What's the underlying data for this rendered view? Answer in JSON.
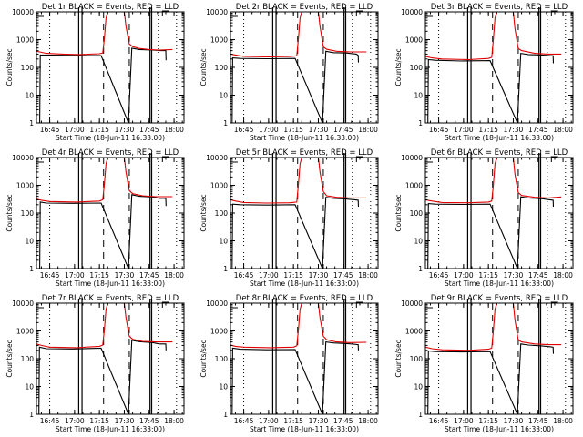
{
  "chart_data": {
    "type": "line",
    "layout": "3x3 grid of panels",
    "shared": {
      "ylabel": "Counts/sec",
      "xlabel": "Start Time (18-Jun-11 16:33:00)",
      "yscale": "log",
      "ylim": [
        1,
        10000
      ],
      "yticks": [
        1,
        10,
        100,
        1000,
        10000
      ],
      "ytick_labels": [
        "1",
        "10",
        "100",
        "1000",
        "10000"
      ],
      "xlim_minutes_after_start": [
        4,
        93
      ],
      "xticks_minutes_after_start": [
        12,
        27,
        42,
        57,
        72,
        87
      ],
      "xtick_labels": [
        "16:45",
        "17:00",
        "17:15",
        "17:30",
        "17:45",
        "18:00"
      ],
      "series_legend": [
        {
          "name": "Events",
          "color": "#000000"
        },
        {
          "name": "LLD",
          "color": "#e00000"
        }
      ],
      "markers": {
        "solid_vertical_minutes": [
          29.5,
          31.5,
          72.5,
          73.5
        ],
        "dashed_vertical_minutes": [
          44.5,
          60
        ],
        "dotted_vertical_minutes": [
          12,
          77.5,
          88.5
        ]
      }
    },
    "panels": [
      {
        "title": "Det 1r BLACK = Events, RED = LLD",
        "events": [
          [
            6,
            0
          ],
          [
            6.3,
            280
          ],
          [
            26,
            270
          ],
          [
            29,
            265
          ],
          [
            43,
            265
          ],
          [
            59.5,
            0
          ],
          [
            61.5,
            490
          ],
          [
            66,
            440
          ],
          [
            74,
            420
          ],
          [
            79,
            400
          ],
          [
            82,
            400
          ],
          [
            82.2,
            180
          ]
        ],
        "lld": [
          [
            4,
            380
          ],
          [
            6,
            360
          ],
          [
            10,
            320
          ],
          [
            20,
            300
          ],
          [
            30,
            290
          ],
          [
            42,
            310
          ],
          [
            44,
            330
          ],
          [
            45,
            1100
          ],
          [
            46,
            6000
          ],
          [
            47,
            10000
          ],
          [
            57,
            10000
          ],
          [
            58,
            3000
          ],
          [
            60,
            700
          ],
          [
            62,
            560
          ],
          [
            66,
            480
          ],
          [
            72,
            440
          ],
          [
            78,
            420
          ],
          [
            86,
            440
          ]
        ]
      },
      {
        "title": "Det 2r BLACK = Events, RED = LLD",
        "events": [
          [
            5,
            0
          ],
          [
            5.3,
            220
          ],
          [
            10,
            210
          ],
          [
            26,
            205
          ],
          [
            43,
            210
          ],
          [
            59.5,
            0
          ],
          [
            61.5,
            380
          ],
          [
            66,
            340
          ],
          [
            74,
            330
          ],
          [
            80,
            300
          ],
          [
            81,
            270
          ],
          [
            81.2,
            150
          ]
        ],
        "lld": [
          [
            4,
            300
          ],
          [
            7,
            280
          ],
          [
            12,
            250
          ],
          [
            26,
            240
          ],
          [
            40,
            245
          ],
          [
            44,
            260
          ],
          [
            45,
            1100
          ],
          [
            46,
            6000
          ],
          [
            47,
            10000
          ],
          [
            57,
            10000
          ],
          [
            58,
            3000
          ],
          [
            60,
            550
          ],
          [
            62,
            450
          ],
          [
            68,
            380
          ],
          [
            76,
            360
          ],
          [
            86,
            360
          ]
        ]
      },
      {
        "title": "Det 3r BLACK = Events, RED = LLD",
        "events": [
          [
            5.5,
            0
          ],
          [
            5.8,
            190
          ],
          [
            10,
            180
          ],
          [
            26,
            170
          ],
          [
            43,
            175
          ],
          [
            59.5,
            0
          ],
          [
            61.5,
            320
          ],
          [
            66,
            290
          ],
          [
            74,
            280
          ],
          [
            79,
            265
          ],
          [
            81,
            260
          ],
          [
            81.2,
            140
          ]
        ],
        "lld": [
          [
            4,
            250
          ],
          [
            8,
            220
          ],
          [
            14,
            200
          ],
          [
            30,
            190
          ],
          [
            42,
            210
          ],
          [
            44,
            230
          ],
          [
            45,
            1000
          ],
          [
            46,
            6000
          ],
          [
            47,
            10000
          ],
          [
            57,
            10000
          ],
          [
            58,
            2500
          ],
          [
            60,
            480
          ],
          [
            62,
            400
          ],
          [
            70,
            320
          ],
          [
            78,
            300
          ],
          [
            86,
            300
          ]
        ]
      },
      {
        "title": "Det 4r BLACK = Events, RED = LLD",
        "events": [
          [
            6,
            0
          ],
          [
            6.3,
            250
          ],
          [
            10,
            230
          ],
          [
            26,
            225
          ],
          [
            43,
            230
          ],
          [
            59.5,
            0
          ],
          [
            61.5,
            460
          ],
          [
            66,
            400
          ],
          [
            74,
            380
          ],
          [
            78,
            340
          ],
          [
            82,
            340
          ],
          [
            82.2,
            180
          ]
        ],
        "lld": [
          [
            4,
            320
          ],
          [
            7,
            290
          ],
          [
            12,
            260
          ],
          [
            28,
            250
          ],
          [
            42,
            270
          ],
          [
            44,
            300
          ],
          [
            45,
            1100
          ],
          [
            46,
            6000
          ],
          [
            47,
            10000
          ],
          [
            57,
            10000
          ],
          [
            58,
            3000
          ],
          [
            60,
            650
          ],
          [
            62,
            500
          ],
          [
            68,
            420
          ],
          [
            76,
            390
          ],
          [
            86,
            390
          ]
        ]
      },
      {
        "title": "Det 5r BLACK = Events, RED = LLD",
        "events": [
          [
            5,
            0
          ],
          [
            5.3,
            210
          ],
          [
            10,
            200
          ],
          [
            26,
            195
          ],
          [
            43,
            200
          ],
          [
            59.5,
            0
          ],
          [
            61.5,
            370
          ],
          [
            66,
            340
          ],
          [
            74,
            320
          ],
          [
            79,
            300
          ],
          [
            81,
            290
          ],
          [
            81.2,
            170
          ]
        ],
        "lld": [
          [
            4,
            300
          ],
          [
            7,
            270
          ],
          [
            12,
            240
          ],
          [
            26,
            230
          ],
          [
            40,
            235
          ],
          [
            44,
            250
          ],
          [
            45,
            1100
          ],
          [
            46,
            6000
          ],
          [
            47,
            10000
          ],
          [
            57,
            10000
          ],
          [
            58,
            3000
          ],
          [
            60,
            600
          ],
          [
            62,
            420
          ],
          [
            68,
            370
          ],
          [
            76,
            350
          ],
          [
            86,
            350
          ]
        ]
      },
      {
        "title": "Det 6r BLACK = Events, RED = LLD",
        "events": [
          [
            5.5,
            0
          ],
          [
            5.8,
            220
          ],
          [
            10,
            210
          ],
          [
            26,
            205
          ],
          [
            43,
            210
          ],
          [
            59.5,
            0
          ],
          [
            61.5,
            380
          ],
          [
            66,
            350
          ],
          [
            74,
            330
          ],
          [
            79,
            300
          ],
          [
            81,
            290
          ],
          [
            81.2,
            170
          ]
        ],
        "lld": [
          [
            4,
            300
          ],
          [
            8,
            270
          ],
          [
            14,
            240
          ],
          [
            30,
            235
          ],
          [
            42,
            250
          ],
          [
            44,
            270
          ],
          [
            45,
            1000
          ],
          [
            46,
            6000
          ],
          [
            47,
            10000
          ],
          [
            57,
            10000
          ],
          [
            58,
            2500
          ],
          [
            60,
            550
          ],
          [
            62,
            430
          ],
          [
            70,
            370
          ],
          [
            78,
            350
          ],
          [
            86,
            380
          ]
        ]
      },
      {
        "title": "Det 7r BLACK = Events, RED = LLD",
        "events": [
          [
            5.5,
            0
          ],
          [
            5.8,
            260
          ],
          [
            10,
            230
          ],
          [
            26,
            225
          ],
          [
            43,
            240
          ],
          [
            59.5,
            0
          ],
          [
            61.5,
            460
          ],
          [
            66,
            410
          ],
          [
            74,
            380
          ],
          [
            78,
            340
          ],
          [
            82,
            340
          ],
          [
            82.2,
            200
          ]
        ],
        "lld": [
          [
            4,
            340
          ],
          [
            7,
            300
          ],
          [
            12,
            260
          ],
          [
            28,
            250
          ],
          [
            42,
            280
          ],
          [
            44,
            310
          ],
          [
            45,
            1100
          ],
          [
            46,
            6000
          ],
          [
            47,
            10000
          ],
          [
            57,
            10000
          ],
          [
            58,
            3000
          ],
          [
            60,
            650
          ],
          [
            62,
            500
          ],
          [
            68,
            420
          ],
          [
            76,
            400
          ],
          [
            86,
            400
          ]
        ]
      },
      {
        "title": "Det 8r BLACK = Events, RED = LLD",
        "events": [
          [
            5,
            0
          ],
          [
            5.3,
            240
          ],
          [
            10,
            220
          ],
          [
            26,
            210
          ],
          [
            43,
            215
          ],
          [
            59.5,
            0
          ],
          [
            61.5,
            400
          ],
          [
            66,
            370
          ],
          [
            74,
            350
          ],
          [
            79,
            330
          ],
          [
            81,
            320
          ],
          [
            81.2,
            200
          ]
        ],
        "lld": [
          [
            4,
            310
          ],
          [
            7,
            280
          ],
          [
            12,
            260
          ],
          [
            28,
            250
          ],
          [
            42,
            260
          ],
          [
            44,
            290
          ],
          [
            45,
            1100
          ],
          [
            46,
            6000
          ],
          [
            47,
            10000
          ],
          [
            57,
            10000
          ],
          [
            58,
            3000
          ],
          [
            60,
            650
          ],
          [
            62,
            480
          ],
          [
            68,
            400
          ],
          [
            76,
            380
          ],
          [
            86,
            390
          ]
        ]
      },
      {
        "title": "Det 9r BLACK = Events, RED = LLD",
        "events": [
          [
            5.5,
            0
          ],
          [
            5.8,
            190
          ],
          [
            10,
            180
          ],
          [
            26,
            175
          ],
          [
            43,
            180
          ],
          [
            59.5,
            0
          ],
          [
            61.5,
            340
          ],
          [
            66,
            310
          ],
          [
            74,
            290
          ],
          [
            79,
            270
          ],
          [
            81,
            260
          ],
          [
            81.2,
            150
          ]
        ],
        "lld": [
          [
            4,
            260
          ],
          [
            8,
            230
          ],
          [
            14,
            210
          ],
          [
            30,
            200
          ],
          [
            42,
            220
          ],
          [
            44,
            240
          ],
          [
            45,
            1000
          ],
          [
            46,
            6000
          ],
          [
            47,
            10000
          ],
          [
            57,
            10000
          ],
          [
            58,
            2500
          ],
          [
            60,
            470
          ],
          [
            62,
            400
          ],
          [
            70,
            340
          ],
          [
            78,
            320
          ],
          [
            86,
            320
          ]
        ]
      }
    ]
  }
}
